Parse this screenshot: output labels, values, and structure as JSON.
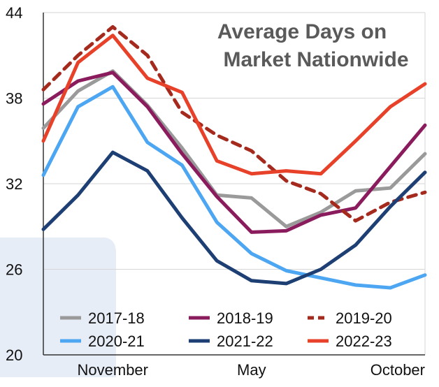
{
  "chart_data": {
    "type": "line",
    "title": [
      "Average Days on",
      "Market Nationwide"
    ],
    "xlabel": "",
    "ylabel": "",
    "ylim": [
      20,
      44
    ],
    "yticks": [
      20,
      26,
      32,
      38,
      44
    ],
    "grid": true,
    "legend_placement": "bottom",
    "x": [
      1,
      2,
      3,
      4,
      5,
      6,
      7,
      8,
      9,
      10,
      11,
      12
    ],
    "x_tick_labels": [
      {
        "label": "November",
        "x": 3
      },
      {
        "label": "May",
        "x": 7
      },
      {
        "label": "October",
        "x": 12
      }
    ],
    "series": [
      {
        "name": "2017-18",
        "color": "#9a9a9a",
        "dash": false,
        "values": [
          35.9,
          38.5,
          39.9,
          37.5,
          34.5,
          31.2,
          31.0,
          29.0,
          30.0,
          31.5,
          31.7,
          34.1
        ]
      },
      {
        "name": "2018-19",
        "color": "#8a1c5e",
        "dash": false,
        "values": [
          37.6,
          39.2,
          39.8,
          37.4,
          34.1,
          31.1,
          28.6,
          28.7,
          29.8,
          30.3,
          33.2,
          36.1
        ]
      },
      {
        "name": "2019-20",
        "color": "#a52a1e",
        "dash": true,
        "values": [
          38.6,
          41.0,
          43.0,
          41.0,
          37.0,
          35.4,
          34.3,
          32.2,
          31.3,
          29.4,
          30.7,
          31.4
        ]
      },
      {
        "name": "2020-21",
        "color": "#4da6f2",
        "dash": false,
        "values": [
          32.6,
          37.4,
          38.8,
          34.9,
          33.3,
          29.3,
          27.1,
          25.9,
          25.4,
          24.9,
          24.7,
          25.6
        ]
      },
      {
        "name": "2021-22",
        "color": "#1e3f73",
        "dash": false,
        "values": [
          28.8,
          31.2,
          34.2,
          32.9,
          29.6,
          26.6,
          25.2,
          25.0,
          26.0,
          27.7,
          30.4,
          32.8
        ]
      },
      {
        "name": "2022-23",
        "color": "#e8412a",
        "dash": false,
        "values": [
          35.0,
          40.5,
          42.4,
          39.4,
          38.4,
          33.6,
          32.7,
          32.9,
          32.7,
          35.0,
          37.4,
          39.0
        ]
      }
    ]
  }
}
